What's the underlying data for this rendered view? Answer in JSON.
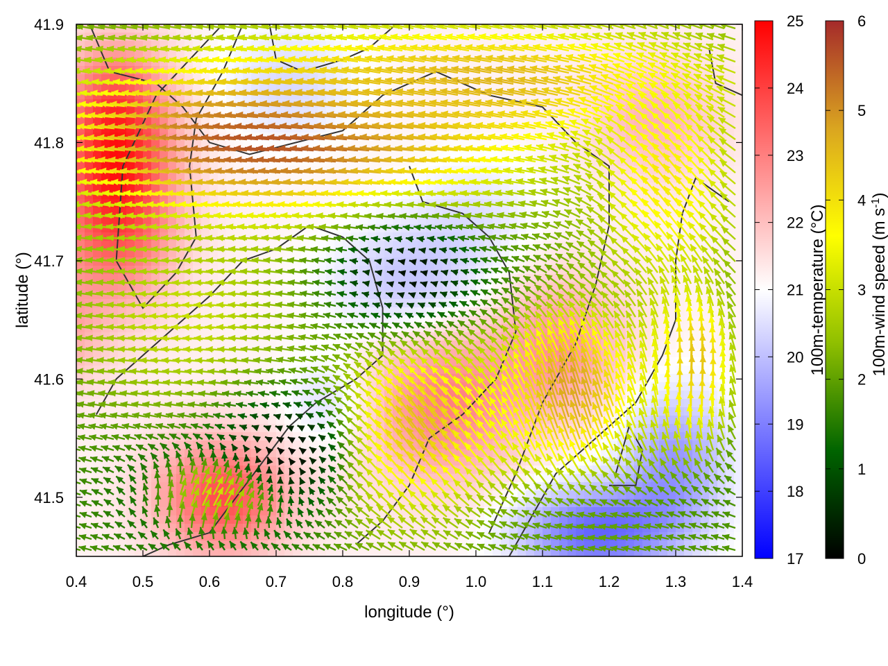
{
  "chart_data": {
    "type": "heatmap",
    "xlabel": "longitude (°)",
    "ylabel": "latitude (°)",
    "xlim": [
      0.4,
      1.4
    ],
    "ylim": [
      41.45,
      41.9
    ],
    "x_ticks": [
      "0.4",
      "0.5",
      "0.6",
      "0.7",
      "0.8",
      "0.9",
      "1.0",
      "1.1",
      "1.2",
      "1.3",
      "1.4"
    ],
    "x_tick_values": [
      0.4,
      0.5,
      0.6,
      0.7,
      0.8,
      0.9,
      1.0,
      1.1,
      1.2,
      1.3,
      1.4
    ],
    "y_ticks": [
      "41.5",
      "41.6",
      "41.7",
      "41.8",
      "41.9"
    ],
    "y_tick_values": [
      41.5,
      41.6,
      41.7,
      41.8,
      41.9
    ],
    "grid": false,
    "temperature_colorbar": {
      "label": "100m-temperature (°C)",
      "range": [
        17,
        25
      ],
      "ticks": [
        "17",
        "18",
        "19",
        "20",
        "21",
        "22",
        "23",
        "24",
        "25"
      ],
      "tick_values": [
        17,
        18,
        19,
        20,
        21,
        22,
        23,
        24,
        25
      ],
      "colors": [
        "#0000ff",
        "#ffffff",
        "#ff0000"
      ]
    },
    "wind_colorbar": {
      "label": "100m-wind speed (m s",
      "label_sup": "-1",
      "label_end": ")",
      "range": [
        0,
        6
      ],
      "ticks": [
        "0",
        "1",
        "2",
        "3",
        "4",
        "5",
        "6"
      ],
      "tick_values": [
        0,
        1,
        2,
        3,
        4,
        5,
        6
      ],
      "colors": [
        "#000000",
        "#006400",
        "#8fbf00",
        "#ffff00",
        "#daa520",
        "#a52a2a"
      ]
    },
    "temperature_field": {
      "background": 21.2,
      "features": [
        {
          "lon": 0.46,
          "lat": 41.75,
          "value": 24.2,
          "rlon": 0.09,
          "rlat": 0.08
        },
        {
          "lon": 0.46,
          "lat": 41.83,
          "value": 23.2,
          "rlon": 0.08,
          "rlat": 0.06
        },
        {
          "lon": 0.62,
          "lat": 41.5,
          "value": 23.8,
          "rlon": 0.1,
          "rlat": 0.05
        },
        {
          "lon": 0.95,
          "lat": 41.58,
          "value": 23.0,
          "rlon": 0.12,
          "rlat": 0.07
        },
        {
          "lon": 1.13,
          "lat": 41.63,
          "value": 22.6,
          "rlon": 0.1,
          "rlat": 0.06
        },
        {
          "lon": 1.27,
          "lat": 41.82,
          "value": 22.2,
          "rlon": 0.1,
          "rlat": 0.05
        },
        {
          "lon": 0.35,
          "lat": 41.64,
          "value": 22.6,
          "rlon": 0.08,
          "rlat": 0.05
        },
        {
          "lon": 1.3,
          "lat": 41.53,
          "value": 19.4,
          "rlon": 0.08,
          "rlat": 0.06
        },
        {
          "lon": 1.18,
          "lat": 41.47,
          "value": 18.6,
          "rlon": 0.12,
          "rlat": 0.04
        },
        {
          "lon": 0.9,
          "lat": 41.68,
          "value": 20.0,
          "rlon": 0.12,
          "rlat": 0.05
        },
        {
          "lon": 0.78,
          "lat": 41.58,
          "value": 20.4,
          "rlon": 0.07,
          "rlat": 0.04
        },
        {
          "lon": 0.72,
          "lat": 41.85,
          "value": 20.4,
          "rlon": 0.1,
          "rlat": 0.05
        },
        {
          "lon": 1.0,
          "lat": 41.74,
          "value": 20.6,
          "rlon": 0.1,
          "rlat": 0.05
        }
      ]
    },
    "wind_field": {
      "jets": [
        {
          "lon": 0.72,
          "lat": 41.8,
          "u": -5.8,
          "v": 0.4,
          "rlon": 0.35,
          "rlat": 0.07
        },
        {
          "lon": 1.05,
          "lat": 41.85,
          "u": -4.5,
          "v": 0.8,
          "rlon": 0.35,
          "rlat": 0.05
        },
        {
          "lon": 1.3,
          "lat": 41.76,
          "u": -2.5,
          "v": 3.0,
          "rlon": 0.12,
          "rlat": 0.1
        },
        {
          "lon": 0.92,
          "lat": 41.55,
          "u": -2.8,
          "v": 3.6,
          "rlon": 0.14,
          "rlat": 0.08
        },
        {
          "lon": 1.15,
          "lat": 41.58,
          "u": -1.4,
          "v": 4.6,
          "rlon": 0.12,
          "rlat": 0.08
        },
        {
          "lon": 1.33,
          "lat": 41.6,
          "u": 0.2,
          "v": 4.4,
          "rlon": 0.08,
          "rlat": 0.08
        },
        {
          "lon": 0.62,
          "lat": 41.5,
          "u": 1.8,
          "v": 3.2,
          "rlon": 0.12,
          "rlat": 0.04
        },
        {
          "lon": 0.58,
          "lat": 41.65,
          "u": -3.0,
          "v": 0.2,
          "rlon": 0.18,
          "rlat": 0.08
        },
        {
          "lon": 1.2,
          "lat": 41.47,
          "u": -2.0,
          "v": 0.3,
          "rlon": 0.15,
          "rlat": 0.03
        }
      ],
      "calm_zones": [
        {
          "lon": 0.9,
          "lat": 41.69,
          "rlon": 0.12,
          "rlat": 0.05
        },
        {
          "lon": 0.72,
          "lat": 41.54,
          "rlon": 0.1,
          "rlat": 0.05
        }
      ],
      "max_speed": 6.5
    },
    "contours": [
      [
        [
          0.42,
          41.9
        ],
        [
          0.45,
          41.86
        ],
        [
          0.52,
          41.85
        ],
        [
          0.56,
          41.83
        ],
        [
          0.6,
          41.8
        ],
        [
          0.66,
          41.79
        ],
        [
          0.73,
          41.8
        ],
        [
          0.8,
          41.81
        ],
        [
          0.86,
          41.84
        ],
        [
          0.9,
          41.85
        ],
        [
          0.94,
          41.86
        ],
        [
          1.02,
          41.84
        ],
        [
          1.1,
          41.83
        ],
        [
          1.15,
          41.8
        ],
        [
          1.2,
          41.78
        ],
        [
          1.2,
          41.73
        ],
        [
          1.18,
          41.68
        ],
        [
          1.15,
          41.63
        ],
        [
          1.1,
          41.58
        ],
        [
          1.06,
          41.52
        ],
        [
          1.02,
          41.47
        ]
      ],
      [
        [
          0.65,
          41.9
        ],
        [
          0.62,
          41.86
        ],
        [
          0.58,
          41.82
        ],
        [
          0.57,
          41.78
        ],
        [
          0.58,
          41.72
        ],
        [
          0.55,
          41.69
        ],
        [
          0.5,
          41.66
        ],
        [
          0.46,
          41.7
        ],
        [
          0.47,
          41.78
        ],
        [
          0.52,
          41.84
        ],
        [
          0.57,
          41.87
        ],
        [
          0.62,
          41.9
        ]
      ],
      [
        [
          1.38,
          41.75
        ],
        [
          1.33,
          41.77
        ],
        [
          1.31,
          41.74
        ],
        [
          1.3,
          41.7
        ],
        [
          1.3,
          41.65
        ],
        [
          1.28,
          41.62
        ],
        [
          1.24,
          41.58
        ],
        [
          1.18,
          41.55
        ],
        [
          1.12,
          41.52
        ],
        [
          1.08,
          41.48
        ],
        [
          1.05,
          41.45
        ]
      ],
      [
        [
          0.43,
          41.57
        ],
        [
          0.46,
          41.6
        ],
        [
          0.5,
          41.62
        ],
        [
          0.54,
          41.64
        ],
        [
          0.6,
          41.67
        ],
        [
          0.65,
          41.7
        ],
        [
          0.7,
          41.71
        ],
        [
          0.75,
          41.73
        ],
        [
          0.8,
          41.72
        ],
        [
          0.84,
          41.7
        ],
        [
          0.86,
          41.66
        ],
        [
          0.86,
          41.62
        ],
        [
          0.82,
          41.6
        ],
        [
          0.76,
          41.58
        ],
        [
          0.72,
          41.56
        ],
        [
          0.68,
          41.53
        ],
        [
          0.64,
          41.5
        ],
        [
          0.6,
          41.47
        ],
        [
          0.54,
          41.46
        ],
        [
          0.5,
          41.45
        ]
      ],
      [
        [
          0.9,
          41.78
        ],
        [
          0.92,
          41.75
        ],
        [
          0.98,
          41.74
        ],
        [
          1.02,
          41.72
        ],
        [
          1.05,
          41.69
        ],
        [
          1.06,
          41.64
        ],
        [
          1.03,
          41.6
        ],
        [
          0.98,
          41.57
        ],
        [
          0.93,
          41.55
        ],
        [
          0.9,
          41.51
        ],
        [
          0.86,
          41.48
        ],
        [
          0.82,
          41.46
        ]
      ],
      [
        [
          0.69,
          41.9
        ],
        [
          0.7,
          41.87
        ],
        [
          0.74,
          41.86
        ],
        [
          0.8,
          41.87
        ],
        [
          0.84,
          41.88
        ],
        [
          0.88,
          41.9
        ]
      ],
      [
        [
          1.35,
          41.88
        ],
        [
          1.36,
          41.85
        ],
        [
          1.4,
          41.84
        ]
      ],
      [
        [
          1.2,
          41.51
        ],
        [
          1.24,
          41.51
        ],
        [
          1.25,
          41.54
        ],
        [
          1.23,
          41.56
        ],
        [
          1.21,
          41.52
        ]
      ]
    ]
  }
}
